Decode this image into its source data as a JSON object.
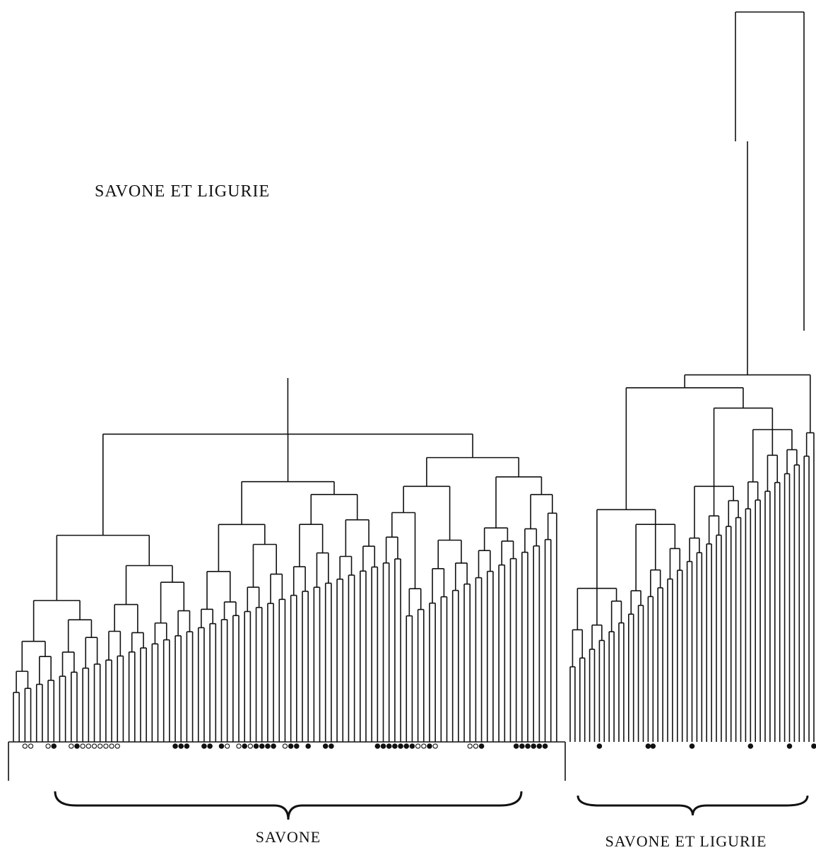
{
  "figure": {
    "title": "SAVONE  ET  LIGURIE",
    "groups": [
      {
        "label": "SAVONE"
      },
      {
        "label": "SAVONE  ET  LIGURIE"
      }
    ]
  },
  "style": {
    "ink": "#111111",
    "background": "#ffffff"
  },
  "dendrogram": {
    "leaf_markers": {
      "legend": [
        "filled",
        "open"
      ],
      "sequence": "ooooXoooooooooooooo*oooooooooooooooooo",
      "savone": "..oo..o*..o*ooooooo.........***..**.*o.o*o****.o**.*..**.......*******oo*o.....oo*.....******",
      "ligurie": "......*.........**.......*...........*.......*....*"
    }
  }
}
